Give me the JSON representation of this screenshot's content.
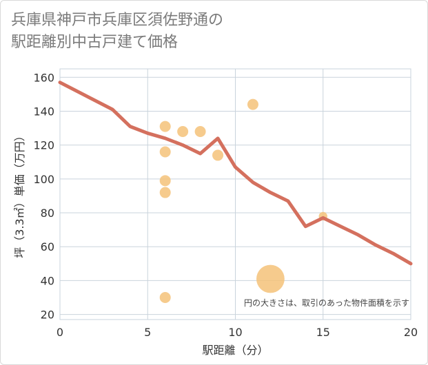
{
  "title": {
    "line1": "兵庫県神戸市兵庫区須佐野通の",
    "line2": "駅距離別中古戸建て価格"
  },
  "chart_data": {
    "type": "scatter",
    "xlabel": "駅距離（分）",
    "ylabel": "坪（3.3㎡）単価（万円）",
    "xlim": [
      0,
      20
    ],
    "ylim": [
      17,
      165
    ],
    "xticks": [
      0,
      5,
      10,
      15,
      20
    ],
    "yticks": [
      20,
      40,
      60,
      80,
      100,
      120,
      140,
      160
    ],
    "grid": true,
    "note": "円の大きさは、取引のあった物件面積を示す",
    "scatter_color": "#f5c279",
    "line_color": "#d4705e",
    "points": [
      {
        "x": 6,
        "y": 131,
        "size": 1
      },
      {
        "x": 7,
        "y": 128,
        "size": 1
      },
      {
        "x": 8,
        "y": 128,
        "size": 1
      },
      {
        "x": 6,
        "y": 116,
        "size": 1
      },
      {
        "x": 9,
        "y": 114,
        "size": 1
      },
      {
        "x": 6,
        "y": 99,
        "size": 1
      },
      {
        "x": 6,
        "y": 92,
        "size": 1
      },
      {
        "x": 11,
        "y": 144,
        "size": 1
      },
      {
        "x": 15,
        "y": 78,
        "size": 0.6
      },
      {
        "x": 12,
        "y": 41,
        "size": 6.5
      },
      {
        "x": 6,
        "y": 30,
        "size": 1
      }
    ],
    "trend": [
      {
        "x": 0,
        "y": 157
      },
      {
        "x": 3,
        "y": 141
      },
      {
        "x": 4,
        "y": 131
      },
      {
        "x": 5,
        "y": 127
      },
      {
        "x": 6,
        "y": 124
      },
      {
        "x": 7,
        "y": 120
      },
      {
        "x": 8,
        "y": 115
      },
      {
        "x": 9,
        "y": 124
      },
      {
        "x": 10,
        "y": 107
      },
      {
        "x": 11,
        "y": 98
      },
      {
        "x": 12,
        "y": 92
      },
      {
        "x": 13,
        "y": 87
      },
      {
        "x": 14,
        "y": 72
      },
      {
        "x": 15,
        "y": 77
      },
      {
        "x": 16,
        "y": 72
      },
      {
        "x": 17,
        "y": 67
      },
      {
        "x": 18,
        "y": 61
      },
      {
        "x": 19,
        "y": 56
      },
      {
        "x": 20,
        "y": 50
      }
    ]
  }
}
